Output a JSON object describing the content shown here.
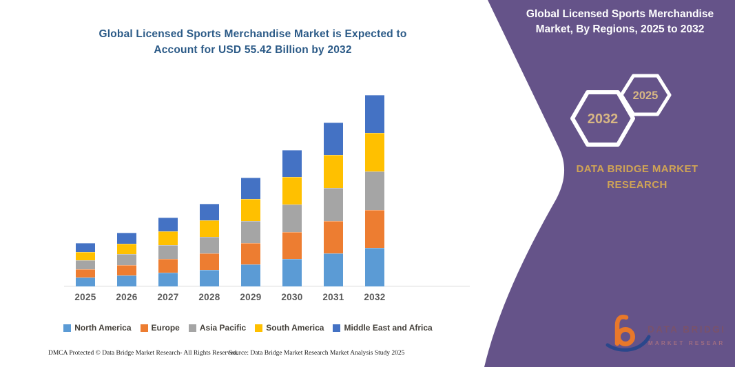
{
  "left": {
    "footer_left": "DMCA Protected © Data Bridge Market Research-  All Rights Reserved.",
    "footer_right": "Source: Data Bridge Market Research  Market Analysis Study 2025"
  },
  "right_panel": {
    "title": "Global Licensed Sports Merchandise Market, By Regions, 2025 to 2032",
    "hexagons": [
      {
        "label": "2032"
      },
      {
        "label": "2025"
      }
    ],
    "brand_text": "DATA BRIDGE MARKET RESEARCH",
    "logo": {
      "line1": "DATA BRIDGE",
      "line2": "MARKET RESEARCH"
    },
    "background_color": "#655389",
    "accent_text_color": "#D8B784"
  },
  "chart_data": {
    "type": "bar",
    "stacked": true,
    "title": "Global Licensed Sports Merchandise Market is Expected to Account for USD 55.42 Billion by 2032",
    "xlabel": "",
    "ylabel": "",
    "unit": "USD Billion",
    "categories": [
      "2025",
      "2026",
      "2027",
      "2028",
      "2029",
      "2030",
      "2031",
      "2032"
    ],
    "series": [
      {
        "name": "North America",
        "color": "#5B9BD5",
        "values": [
          2.5,
          3.1,
          4.0,
          4.8,
          6.3,
          7.9,
          9.5,
          11.1
        ]
      },
      {
        "name": "Europe",
        "color": "#ED7D31",
        "values": [
          2.5,
          3.1,
          4.0,
          4.8,
          6.3,
          7.9,
          9.5,
          11.1
        ]
      },
      {
        "name": "Asia Pacific",
        "color": "#A5A5A5",
        "values": [
          2.5,
          3.1,
          4.0,
          4.8,
          6.3,
          7.9,
          9.5,
          11.08
        ]
      },
      {
        "name": "South America",
        "color": "#FFC000",
        "values": [
          2.5,
          3.1,
          4.0,
          4.8,
          6.3,
          7.9,
          9.5,
          11.1
        ]
      },
      {
        "name": "Middle East and Africa",
        "color": "#4472C4",
        "values": [
          2.5,
          3.1,
          4.0,
          4.8,
          6.3,
          7.9,
          9.5,
          11.04
        ]
      }
    ],
    "totals": [
      12.5,
      15.5,
      20.0,
      24.0,
      31.5,
      39.5,
      47.5,
      55.42
    ],
    "ylim": [
      0,
      60
    ],
    "grid": false,
    "y_axis_visible": false,
    "legend_position": "bottom"
  }
}
